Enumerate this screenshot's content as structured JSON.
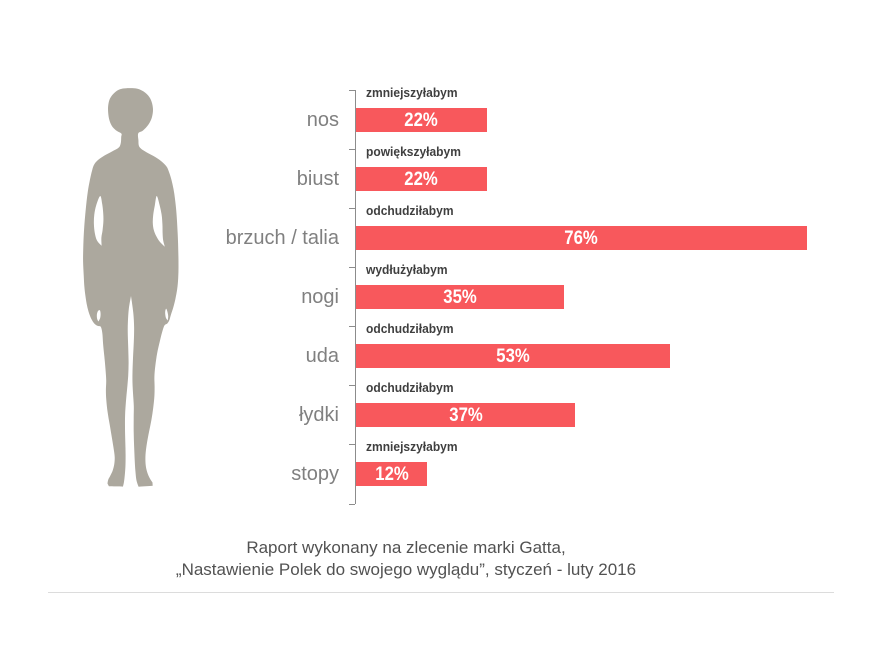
{
  "chart_data": {
    "type": "bar",
    "orientation": "horizontal",
    "unit": "%",
    "categories": [
      "nos",
      "biust",
      "brzuch / talia",
      "nogi",
      "uda",
      "łydki",
      "stopy"
    ],
    "series_labels": [
      "zmniejszyłabym",
      "powiększyłabym",
      "odchudziłabym",
      "wydłużyłabym",
      "odchudziłabym",
      "odchudziłabym",
      "zmniejszyłabym"
    ],
    "values": [
      22,
      22,
      76,
      35,
      53,
      37,
      12
    ],
    "value_labels": [
      "22%",
      "22%",
      "76%",
      "35%",
      "53%",
      "37%",
      "12%"
    ],
    "title": "",
    "xlabel": "",
    "ylabel": "",
    "grid": false,
    "legend": false
  },
  "figure": {
    "name": "female-body-silhouette",
    "color": "#aca89e"
  },
  "caption": {
    "line1": "Raport wykonany na zlecenie marki Gatta,",
    "line2": "„Nastawienie Polek do swojego wyglądu”, styczeń - luty 2016"
  },
  "colors": {
    "bar": "#f8585c",
    "category_label": "#808080",
    "series_label": "#3f3f3f",
    "value_label": "#ffffff",
    "axis": "#8c8c8c",
    "silhouette": "#aca89e",
    "divider": "#dcdcdc",
    "background": "#ffffff"
  }
}
